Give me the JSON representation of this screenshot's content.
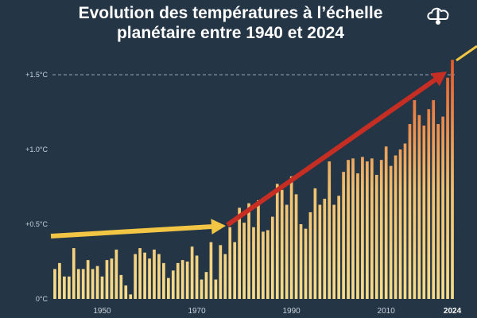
{
  "title_line1": "Evolution des températures à l’échelle",
  "title_line2": "planétaire entre 1940 et 2024",
  "colors": {
    "background": "#243546",
    "bar_low": "#f6dc8a",
    "bar_high": "#e45a2c",
    "arrow_early": "#f2c544",
    "arrow_late": "#c62e24",
    "reference_line": "#9aa6b2",
    "text": "#c9d2db"
  },
  "chart_data": {
    "type": "bar",
    "xlabel": "",
    "ylabel": "",
    "ylim": [
      0,
      1.6
    ],
    "xlim": [
      1940,
      2024
    ],
    "reference_line": 1.5,
    "y_ticks": [
      {
        "value": 0,
        "label": "0°C"
      },
      {
        "value": 0.5,
        "label": "+0.5°C"
      },
      {
        "value": 1.0,
        "label": "+1.0°C"
      },
      {
        "value": 1.5,
        "label": "+1.5°C"
      }
    ],
    "x_ticks": [
      {
        "value": 1950,
        "label": "1950"
      },
      {
        "value": 1970,
        "label": "1970"
      },
      {
        "value": 1990,
        "label": "1990"
      },
      {
        "value": 2010,
        "label": "2010"
      },
      {
        "value": 2024,
        "label": "2024"
      }
    ],
    "years": [
      1940,
      1941,
      1942,
      1943,
      1944,
      1945,
      1946,
      1947,
      1948,
      1949,
      1950,
      1951,
      1952,
      1953,
      1954,
      1955,
      1956,
      1957,
      1958,
      1959,
      1960,
      1961,
      1962,
      1963,
      1964,
      1965,
      1966,
      1967,
      1968,
      1969,
      1970,
      1971,
      1972,
      1973,
      1974,
      1975,
      1976,
      1977,
      1978,
      1979,
      1980,
      1981,
      1982,
      1983,
      1984,
      1985,
      1986,
      1987,
      1988,
      1989,
      1990,
      1991,
      1992,
      1993,
      1994,
      1995,
      1996,
      1997,
      1998,
      1999,
      2000,
      2001,
      2002,
      2003,
      2004,
      2005,
      2006,
      2007,
      2008,
      2009,
      2010,
      2011,
      2012,
      2013,
      2014,
      2015,
      2016,
      2017,
      2018,
      2019,
      2020,
      2021,
      2022,
      2023,
      2024
    ],
    "values": [
      0.2,
      0.24,
      0.15,
      0.15,
      0.34,
      0.2,
      0.2,
      0.26,
      0.2,
      0.22,
      0.15,
      0.26,
      0.27,
      0.33,
      0.16,
      0.09,
      0.03,
      0.3,
      0.34,
      0.31,
      0.27,
      0.33,
      0.3,
      0.24,
      0.14,
      0.19,
      0.24,
      0.26,
      0.25,
      0.35,
      0.29,
      0.13,
      0.18,
      0.38,
      0.13,
      0.36,
      0.3,
      0.48,
      0.38,
      0.61,
      0.51,
      0.64,
      0.48,
      0.66,
      0.45,
      0.46,
      0.55,
      0.77,
      0.73,
      0.63,
      0.82,
      0.7,
      0.5,
      0.47,
      0.58,
      0.74,
      0.63,
      0.67,
      0.92,
      0.63,
      0.69,
      0.85,
      0.93,
      0.94,
      0.84,
      0.95,
      0.92,
      0.94,
      0.83,
      0.93,
      1.02,
      0.89,
      0.96,
      1.0,
      1.04,
      1.17,
      1.33,
      1.23,
      1.16,
      1.27,
      1.33,
      1.17,
      1.22,
      1.48,
      1.6
    ]
  }
}
